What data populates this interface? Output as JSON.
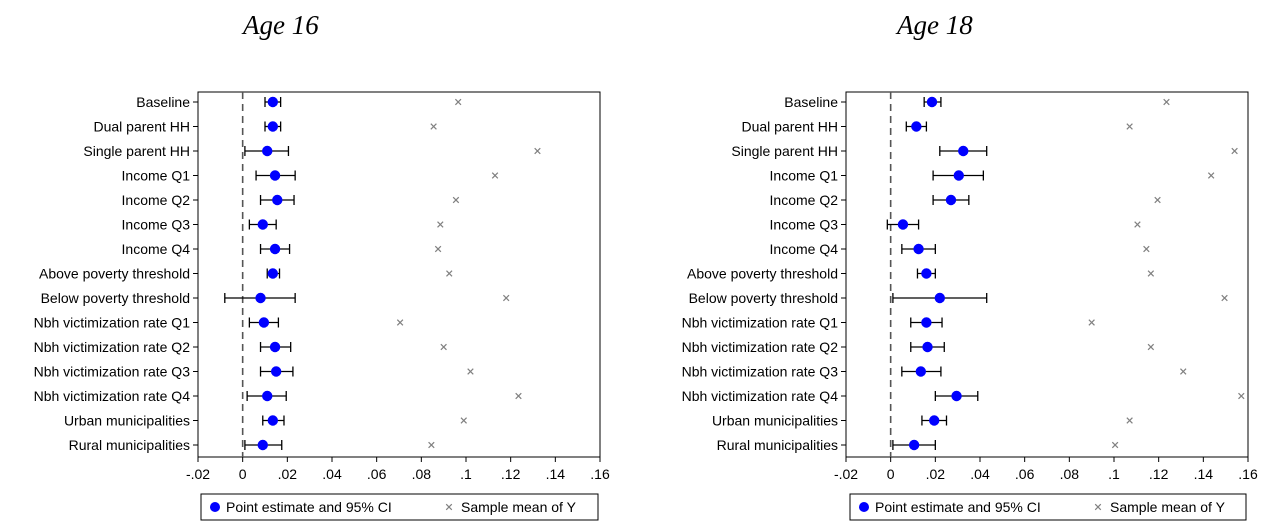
{
  "chart_data": [
    {
      "type": "scatter",
      "title": "Age 16",
      "categories": [
        "Baseline",
        "Dual parent HH",
        "Single parent HH",
        "Income Q1",
        "Income Q2",
        "Income Q3",
        "Income Q4",
        "Above poverty threshold",
        "Below poverty threshold",
        "Nbh victimization rate Q1",
        "Nbh victimization rate Q2",
        "Nbh victimization rate Q3",
        "Nbh victimization rate Q4",
        "Urban municipalities",
        "Rural municipalities"
      ],
      "xlim": [
        -0.02,
        0.16
      ],
      "xticks": [
        -0.02,
        0,
        0.02,
        0.04,
        0.06,
        0.08,
        0.1,
        0.12,
        0.14,
        0.16
      ],
      "xtick_labels": [
        "-.02",
        "0",
        ".02",
        ".04",
        ".06",
        ".08",
        ".1",
        ".12",
        ".14",
        ".16"
      ],
      "reference_line": 0,
      "grid": false,
      "legend_position": "bottom",
      "series": [
        {
          "name": "Point estimate and 95% CI",
          "color": "#0000ff",
          "values": [
            0.0135,
            0.0135,
            0.011,
            0.0145,
            0.0155,
            0.009,
            0.0145,
            0.0135,
            0.008,
            0.0095,
            0.0145,
            0.015,
            0.011,
            0.0135,
            0.009
          ],
          "ci_low": [
            0.01,
            0.01,
            0.001,
            0.006,
            0.008,
            0.003,
            0.008,
            0.011,
            -0.008,
            0.003,
            0.008,
            0.008,
            0.002,
            0.009,
            0.001
          ],
          "ci_high": [
            0.017,
            0.017,
            0.0205,
            0.0235,
            0.023,
            0.015,
            0.021,
            0.0165,
            0.0235,
            0.016,
            0.0215,
            0.0225,
            0.0195,
            0.0185,
            0.0175
          ]
        },
        {
          "name": "Sample mean of Y",
          "color": "#808080",
          "values": [
            0.0965,
            0.0855,
            0.132,
            0.113,
            0.0955,
            0.0885,
            0.0875,
            0.0925,
            0.118,
            0.0705,
            0.09,
            0.102,
            0.1235,
            0.099,
            0.0845
          ]
        }
      ]
    },
    {
      "type": "scatter",
      "title": "Age 18",
      "categories": [
        "Baseline",
        "Dual parent HH",
        "Single parent HH",
        "Income Q1",
        "Income Q2",
        "Income Q3",
        "Income Q4",
        "Above poverty threshold",
        "Below poverty threshold",
        "Nbh victimization rate Q1",
        "Nbh victimization rate Q2",
        "Nbh victimization rate Q3",
        "Nbh victimization rate Q4",
        "Urban municipalities",
        "Rural municipalities"
      ],
      "xlim": [
        -0.02,
        0.16
      ],
      "xticks": [
        -0.02,
        0,
        0.02,
        0.04,
        0.06,
        0.08,
        0.1,
        0.12,
        0.14,
        0.16
      ],
      "xtick_labels": [
        "-.02",
        "0",
        ".02",
        ".04",
        ".06",
        ".08",
        ".1",
        ".12",
        ".14",
        ".16"
      ],
      "reference_line": 0,
      "grid": false,
      "legend_position": "bottom",
      "series": [
        {
          "name": "Point estimate and 95% CI",
          "color": "#0000ff",
          "values": [
            0.0185,
            0.0115,
            0.0325,
            0.0305,
            0.027,
            0.0055,
            0.0125,
            0.016,
            0.022,
            0.016,
            0.0165,
            0.0135,
            0.0295,
            0.0195,
            0.0105
          ],
          "ci_low": [
            0.015,
            0.007,
            0.022,
            0.019,
            0.019,
            -0.0015,
            0.005,
            0.012,
            0.001,
            0.009,
            0.009,
            0.005,
            0.02,
            0.014,
            0.001
          ],
          "ci_high": [
            0.0225,
            0.016,
            0.043,
            0.0415,
            0.035,
            0.0125,
            0.02,
            0.02,
            0.043,
            0.023,
            0.024,
            0.0225,
            0.039,
            0.025,
            0.02
          ]
        },
        {
          "name": "Sample mean of Y",
          "color": "#808080",
          "values": [
            0.1235,
            0.107,
            0.154,
            0.1435,
            0.1195,
            0.1105,
            0.1145,
            0.1165,
            0.1495,
            0.09,
            0.1165,
            0.131,
            0.157,
            0.107,
            0.1005
          ]
        }
      ]
    }
  ]
}
